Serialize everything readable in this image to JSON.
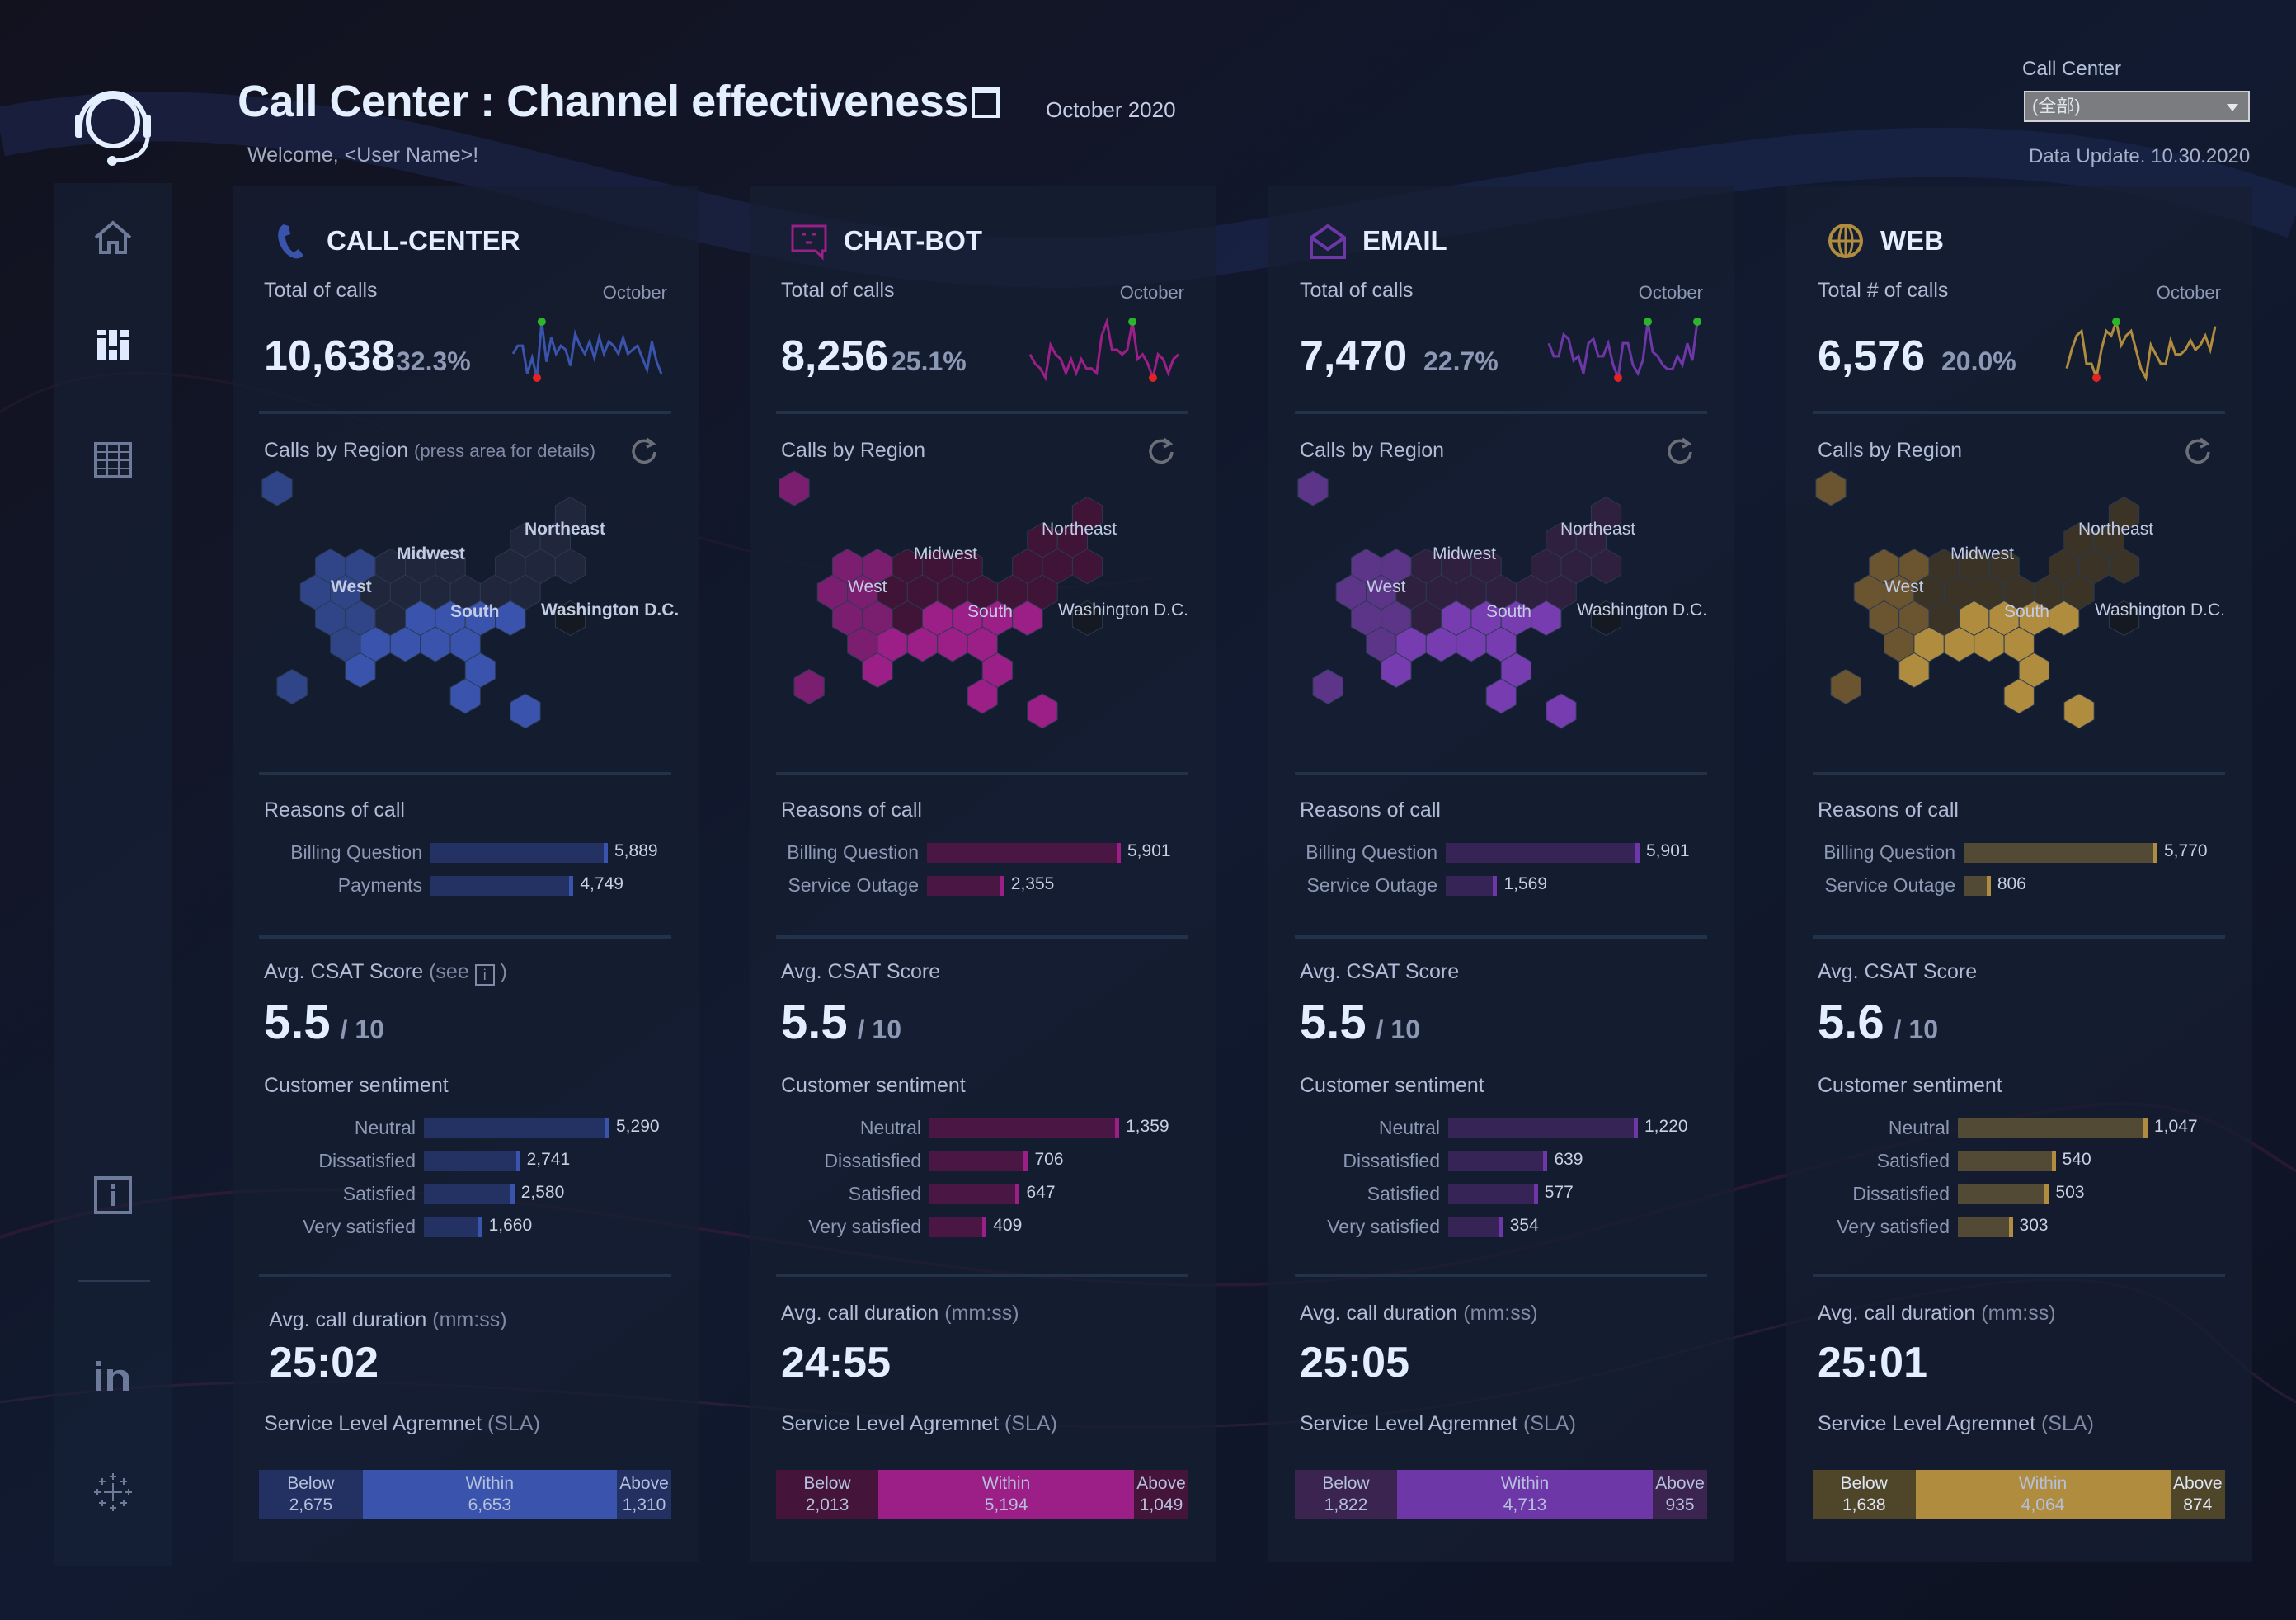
{
  "header": {
    "title": "Call Center : Channel effectiveness",
    "period": "October 2020",
    "welcome": "Welcome, <User Name>!",
    "filter_label": "Call Center",
    "filter_value": "(全部)",
    "data_update": "Data Update. 10.30.2020"
  },
  "sidebar": {
    "items": [
      {
        "name": "home",
        "icon": "home-icon"
      },
      {
        "name": "dashboard",
        "icon": "dashboard-icon",
        "active": true
      },
      {
        "name": "table",
        "icon": "table-icon"
      },
      {
        "name": "info",
        "icon": "info-icon"
      },
      {
        "name": "linkedin",
        "icon": "linkedin-icon"
      },
      {
        "name": "tableau",
        "icon": "tableau-icon"
      }
    ]
  },
  "labels": {
    "month": "October",
    "reasons": "Reasons of call",
    "csat": "Avg. CSAT Score",
    "csat_note": "(see",
    "csat_note_end": ")",
    "of_ten": "/ 10",
    "sentiment": "Customer sentiment",
    "duration": "Avg. call duration",
    "duration_unit": "(mm:ss)",
    "sla": "Service Level Agremnet",
    "sla_abbr": "(SLA)",
    "region": "Calls by Region",
    "region_hint": "(press area for details)",
    "regions": [
      "West",
      "Midwest",
      "Northeast",
      "South",
      "Washington D.C."
    ]
  },
  "channels": [
    {
      "id": "call-center",
      "name": "CALL-CENTER",
      "icon": "phone-icon",
      "color": "#3a54ad",
      "total_label": "Total of calls",
      "total": "10,638",
      "share": "32.3%",
      "spark": [
        14,
        18,
        18,
        4,
        12,
        2,
        30,
        10,
        22,
        14,
        18,
        16,
        8,
        24,
        18,
        14,
        20,
        12,
        22,
        14,
        20,
        18,
        14,
        22,
        14,
        16,
        18,
        12,
        6,
        20,
        10,
        4
      ],
      "spark_max_idx": 6,
      "spark_min_idx": 5,
      "show_hint": true,
      "region_shades": {
        "West": "#2f4587",
        "Midwest": "#20273d",
        "Northeast": "#20273d",
        "South": "#3a54ad",
        "DC": "#151a22",
        "AK": "#2f4587",
        "HI": "#2f4587",
        "PR": "#3a54ad"
      },
      "reasons": [
        {
          "label": "Billing Question",
          "value": 5889
        },
        {
          "label": "Payments",
          "value": 4749
        }
      ],
      "csat": "5.5",
      "sentiment": [
        {
          "label": "Neutral",
          "value": 5290
        },
        {
          "label": "Dissatisfied",
          "value": 2741
        },
        {
          "label": "Satisfied",
          "value": 2580
        },
        {
          "label": "Very satisfied",
          "value": 1660
        }
      ],
      "duration": "25:02",
      "sla": [
        {
          "label": "Below",
          "value": 2675
        },
        {
          "label": "Within",
          "value": 6653
        },
        {
          "label": "Above",
          "value": 1310
        }
      ],
      "bar_bg": "#233263",
      "sla_dark": "#223062"
    },
    {
      "id": "chat-bot",
      "name": "CHAT-BOT",
      "icon": "chatbot-icon",
      "color": "#9b1f86",
      "total_label": "Total of calls",
      "total": "8,256",
      "share": "25.1%",
      "spark": [
        12,
        8,
        6,
        2,
        16,
        12,
        10,
        4,
        10,
        4,
        10,
        6,
        6,
        4,
        20,
        26,
        14,
        14,
        12,
        14,
        26,
        10,
        12,
        8,
        2,
        12,
        10,
        4,
        10,
        12
      ],
      "spark_max_idx": 20,
      "spark_min_idx": 24,
      "show_hint": false,
      "region_shades": {
        "West": "#7c1e6f",
        "Midwest": "#3f1436",
        "Northeast": "#3f1436",
        "South": "#9b1f86",
        "DC": "#151a22",
        "AK": "#7c1e6f",
        "HI": "#7c1e6f",
        "PR": "#9b1f86"
      },
      "reasons": [
        {
          "label": "Billing Question",
          "value": 5901
        },
        {
          "label": "Service Outage",
          "value": 2355
        }
      ],
      "csat": "5.5",
      "sentiment": [
        {
          "label": "Neutral",
          "value": 1359
        },
        {
          "label": "Dissatisfied",
          "value": 706
        },
        {
          "label": "Satisfied",
          "value": 647
        },
        {
          "label": "Very satisfied",
          "value": 409
        }
      ],
      "duration": "24:55",
      "sla": [
        {
          "label": "Below",
          "value": 2013
        },
        {
          "label": "Within",
          "value": 5194
        },
        {
          "label": "Above",
          "value": 1049
        }
      ],
      "bar_bg": "#4a1745",
      "sla_dark": "#44143b"
    },
    {
      "id": "email",
      "name": "EMAIL",
      "icon": "envelope-icon",
      "color": "#6e37a8",
      "total_label": "Total of calls",
      "total": "7,470",
      "share": "22.7%",
      "spark": [
        16,
        10,
        10,
        20,
        18,
        8,
        10,
        2,
        16,
        18,
        10,
        10,
        16,
        6,
        0,
        16,
        16,
        6,
        2,
        8,
        26,
        12,
        10,
        6,
        4,
        4,
        10,
        6,
        16,
        8,
        26
      ],
      "spark_max_idx": 20,
      "spark_min_idx": 14,
      "spark_max_idx2": 30,
      "show_hint": false,
      "region_shades": {
        "West": "#5c3589",
        "Midwest": "#2e203e",
        "Northeast": "#2e203e",
        "South": "#773cb0",
        "DC": "#151a22",
        "AK": "#5c3589",
        "HI": "#5c3589",
        "PR": "#773cb0"
      },
      "reasons": [
        {
          "label": "Billing Question",
          "value": 5901
        },
        {
          "label": "Service Outage",
          "value": 1569
        }
      ],
      "csat": "5.5",
      "sentiment": [
        {
          "label": "Neutral",
          "value": 1220
        },
        {
          "label": "Dissatisfied",
          "value": 639
        },
        {
          "label": "Satisfied",
          "value": 577
        },
        {
          "label": "Very satisfied",
          "value": 354
        }
      ],
      "duration": "25:05",
      "sla": [
        {
          "label": "Below",
          "value": 1822
        },
        {
          "label": "Within",
          "value": 4713
        },
        {
          "label": "Above",
          "value": 935
        }
      ],
      "bar_bg": "#372457",
      "sla_dark": "#3b2550"
    },
    {
      "id": "web",
      "name": "WEB",
      "icon": "globe-icon",
      "color": "#b08d3e",
      "total_label": "Total # of calls",
      "total": "6,576",
      "share": "20.0%",
      "spark": [
        6,
        14,
        20,
        22,
        8,
        8,
        2,
        14,
        22,
        20,
        26,
        16,
        20,
        22,
        14,
        6,
        2,
        16,
        12,
        8,
        8,
        18,
        12,
        12,
        14,
        18,
        14,
        16,
        20,
        14,
        24
      ],
      "spark_max_idx": 10,
      "spark_min_idx": 6,
      "show_hint": false,
      "region_shades": {
        "West": "#6a5530",
        "Midwest": "#3b3325",
        "Northeast": "#3b3325",
        "South": "#b08d3e",
        "DC": "#151a22",
        "AK": "#6a5530",
        "HI": "#6a5530",
        "PR": "#b08d3e"
      },
      "reasons": [
        {
          "label": "Billing Question",
          "value": 5770
        },
        {
          "label": "Service Outage",
          "value": 806
        }
      ],
      "csat": "5.6",
      "sentiment": [
        {
          "label": "Neutral",
          "value": 1047
        },
        {
          "label": "Satisfied",
          "value": 540
        },
        {
          "label": "Dissatisfied",
          "value": 503
        },
        {
          "label": "Very satisfied",
          "value": 303
        }
      ],
      "duration": "25:01",
      "sla": [
        {
          "label": "Below",
          "value": 1638
        },
        {
          "label": "Within",
          "value": 4064
        },
        {
          "label": "Above",
          "value": 874
        }
      ],
      "bar_bg": "#524a35",
      "sla_dark": "#4f4529"
    }
  ]
}
